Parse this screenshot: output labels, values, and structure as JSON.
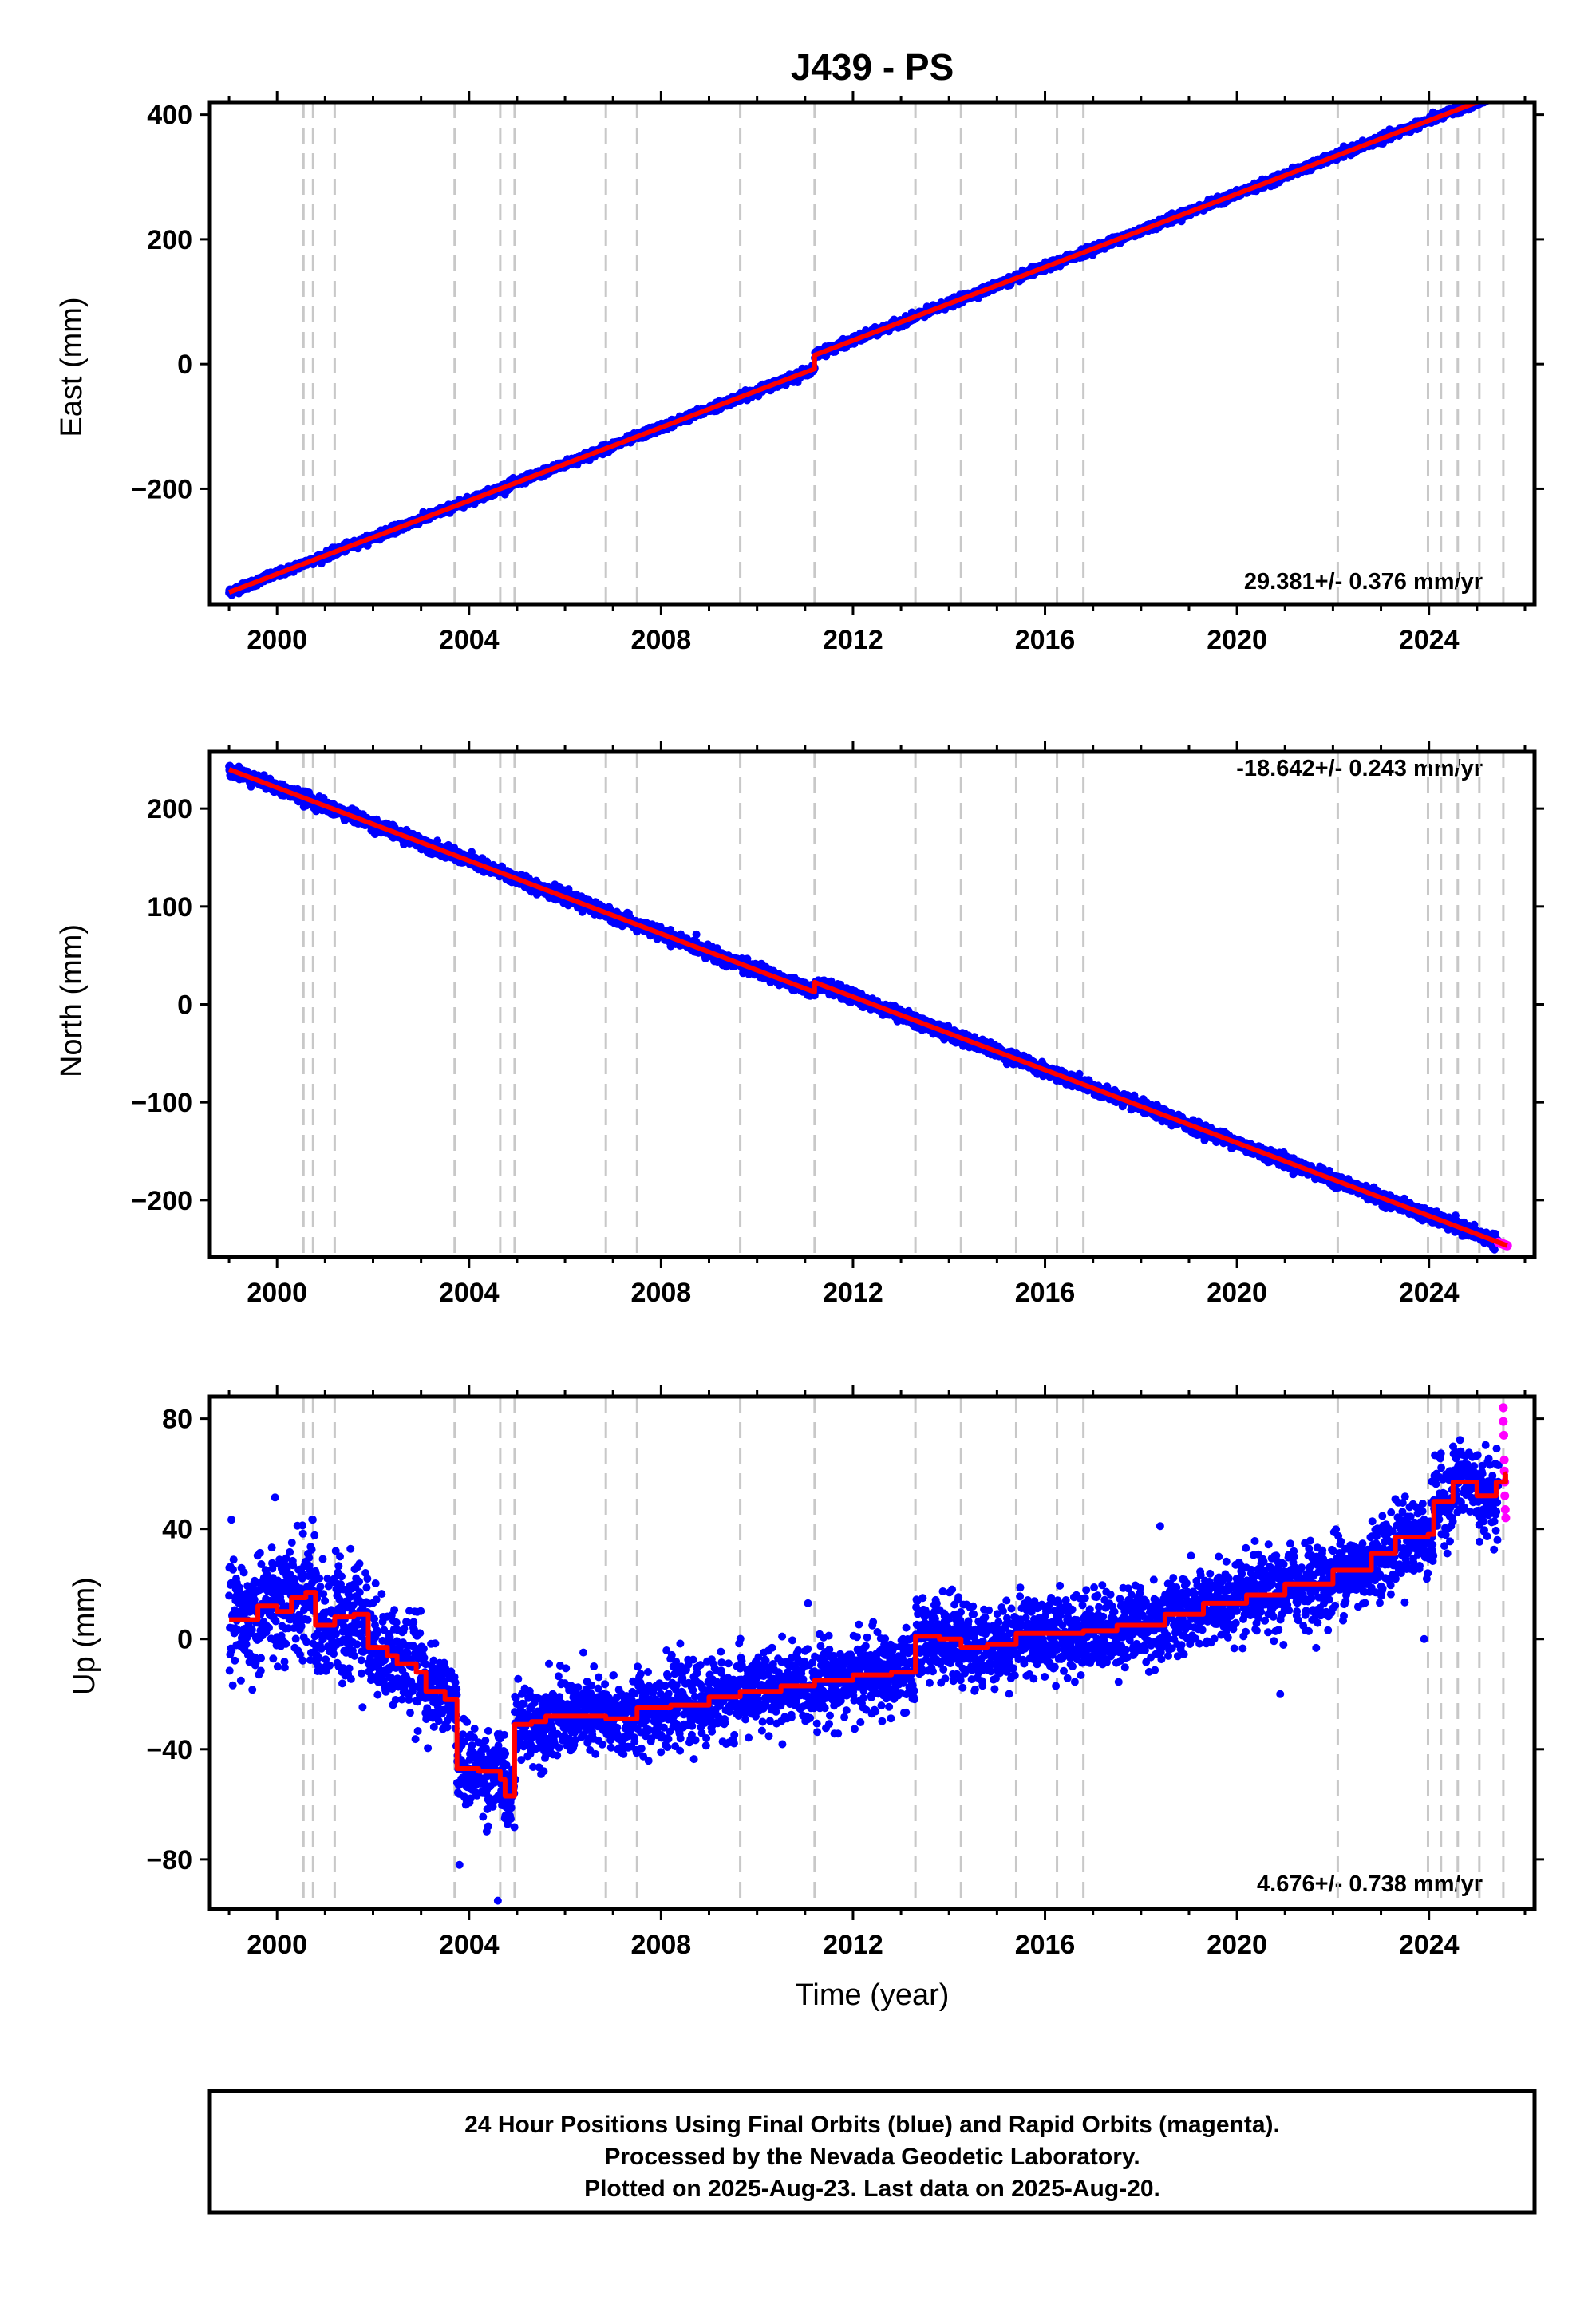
{
  "chart_data": {
    "title": "J439 - PS",
    "type": "scatter",
    "xlabel": "Time (year)",
    "xlim": [
      1998.6,
      2026.2
    ],
    "xticks": [
      2000,
      2004,
      2008,
      2012,
      2016,
      2020,
      2024
    ],
    "xtick_labels": [
      "2000",
      "2004",
      "2008",
      "2012",
      "2016",
      "2020",
      "2024"
    ],
    "event_lines": [
      2000.55,
      2000.75,
      2001.2,
      2003.7,
      2004.65,
      2004.95,
      2006.85,
      2007.5,
      2009.65,
      2011.2,
      2013.3,
      2014.25,
      2015.4,
      2016.25,
      2016.8,
      2022.1,
      2023.98,
      2024.25,
      2024.6,
      2025.05,
      2025.55
    ],
    "colors": {
      "final": "#0000ff",
      "rapid": "#ff00ff",
      "model": "#ff0000",
      "event": "#c8c8c8",
      "frame": "#000000"
    },
    "panels": [
      {
        "name": "east",
        "ylabel": "East (mm)",
        "ylim": [
          -385,
          420
        ],
        "yticks": [
          -200,
          0,
          200,
          400
        ],
        "ytick_labels": [
          "−200",
          "0",
          "200",
          "400"
        ],
        "rate_label": "29.381+/- 0.376 mm/yr",
        "rate_position": "bottom-right",
        "start": 1999.0,
        "end": 2025.63,
        "final_end": 2025.45,
        "base": -366,
        "rate": 29.381,
        "offsets": [
          {
            "t": 2011.2,
            "dy": 22
          }
        ],
        "noise": 3,
        "steps": [],
        "clouds": []
      },
      {
        "name": "north",
        "ylabel": "North (mm)",
        "ylim": [
          -258,
          258
        ],
        "yticks": [
          -200,
          -100,
          0,
          100,
          200
        ],
        "ytick_labels": [
          "−200",
          "−100",
          "0",
          "100",
          "200"
        ],
        "rate_label": "-18.642+/- 0.243 mm/yr",
        "rate_position": "top-right",
        "start": 1999.0,
        "end": 2025.63,
        "final_end": 2025.45,
        "base": 240,
        "rate": -18.642,
        "offsets": [
          {
            "t": 2011.2,
            "dy": 10
          }
        ],
        "noise": 3,
        "steps": [],
        "clouds": []
      },
      {
        "name": "up",
        "ylabel": "Up (mm)",
        "ylim": [
          -98,
          88
        ],
        "yticks": [
          -80,
          -40,
          0,
          40,
          80
        ],
        "ytick_labels": [
          "−80",
          "−40",
          "0",
          "40",
          "80"
        ],
        "rate_label": "4.676+/- 0.738 mm/yr",
        "rate_position": "bottom-right",
        "start": 1999.0,
        "end": 2025.63,
        "final_end": 2025.45,
        "noise": 9,
        "clouds": [
          {
            "t0": 1999.0,
            "t1": 2001.8,
            "sd": 11
          },
          {
            "t0": 2001.8,
            "t1": 2003.0,
            "sd": 9
          },
          {
            "t0": 2003.0,
            "t1": 2005.2,
            "sd": 7
          },
          {
            "t0": 2005.2,
            "t1": 2026.0,
            "sd": 7
          }
        ],
        "steps": [
          [
            1999.0,
            7
          ],
          [
            1999.6,
            12
          ],
          [
            2000.0,
            10
          ],
          [
            2000.3,
            15
          ],
          [
            2000.6,
            17
          ],
          [
            2000.8,
            5
          ],
          [
            2001.2,
            8
          ],
          [
            2001.6,
            9
          ],
          [
            2001.9,
            -3
          ],
          [
            2002.3,
            -6
          ],
          [
            2002.5,
            -9
          ],
          [
            2002.9,
            -12
          ],
          [
            2003.1,
            -19
          ],
          [
            2003.5,
            -22
          ],
          [
            2003.75,
            -47
          ],
          [
            2004.2,
            -48
          ],
          [
            2004.65,
            -51
          ],
          [
            2004.75,
            -57
          ],
          [
            2004.95,
            -31
          ],
          [
            2005.3,
            -30
          ],
          [
            2005.6,
            -28
          ],
          [
            2006.5,
            -28
          ],
          [
            2006.85,
            -29
          ],
          [
            2007.5,
            -25
          ],
          [
            2008.2,
            -24
          ],
          [
            2009.0,
            -21
          ],
          [
            2009.65,
            -19
          ],
          [
            2010.5,
            -17
          ],
          [
            2011.2,
            -15
          ],
          [
            2012.0,
            -13
          ],
          [
            2012.8,
            -12
          ],
          [
            2013.3,
            1
          ],
          [
            2013.8,
            0
          ],
          [
            2014.25,
            -3
          ],
          [
            2014.8,
            -2
          ],
          [
            2015.4,
            2
          ],
          [
            2016.25,
            2
          ],
          [
            2016.8,
            3
          ],
          [
            2017.5,
            5
          ],
          [
            2018.5,
            9
          ],
          [
            2019.3,
            13
          ],
          [
            2020.2,
            16
          ],
          [
            2021.0,
            20
          ],
          [
            2022.0,
            25
          ],
          [
            2022.8,
            31
          ],
          [
            2023.3,
            37
          ],
          [
            2023.98,
            38
          ],
          [
            2024.1,
            50
          ],
          [
            2024.5,
            57
          ],
          [
            2025.0,
            52
          ],
          [
            2025.4,
            57
          ],
          [
            2025.6,
            60
          ]
        ],
        "outliers": [
          [
            2003.8,
            -82
          ],
          [
            2004.6,
            -95
          ],
          [
            2004.4,
            -68
          ],
          [
            2020.9,
            -20
          ],
          [
            2018.4,
            41
          ],
          [
            2023.9,
            0
          ]
        ],
        "rapid_points": [
          [
            2025.55,
            84
          ],
          [
            2025.55,
            79
          ],
          [
            2025.56,
            74
          ],
          [
            2025.57,
            65
          ],
          [
            2025.57,
            61
          ],
          [
            2025.58,
            57
          ],
          [
            2025.58,
            52
          ],
          [
            2025.59,
            47
          ],
          [
            2025.6,
            44
          ]
        ]
      }
    ],
    "footer": [
      "24 Hour Positions Using Final Orbits (blue) and Rapid Orbits (magenta).",
      "Processed by the Nevada Geodetic Laboratory.",
      "Plotted on 2025-Aug-23. Last data on 2025-Aug-20."
    ]
  }
}
